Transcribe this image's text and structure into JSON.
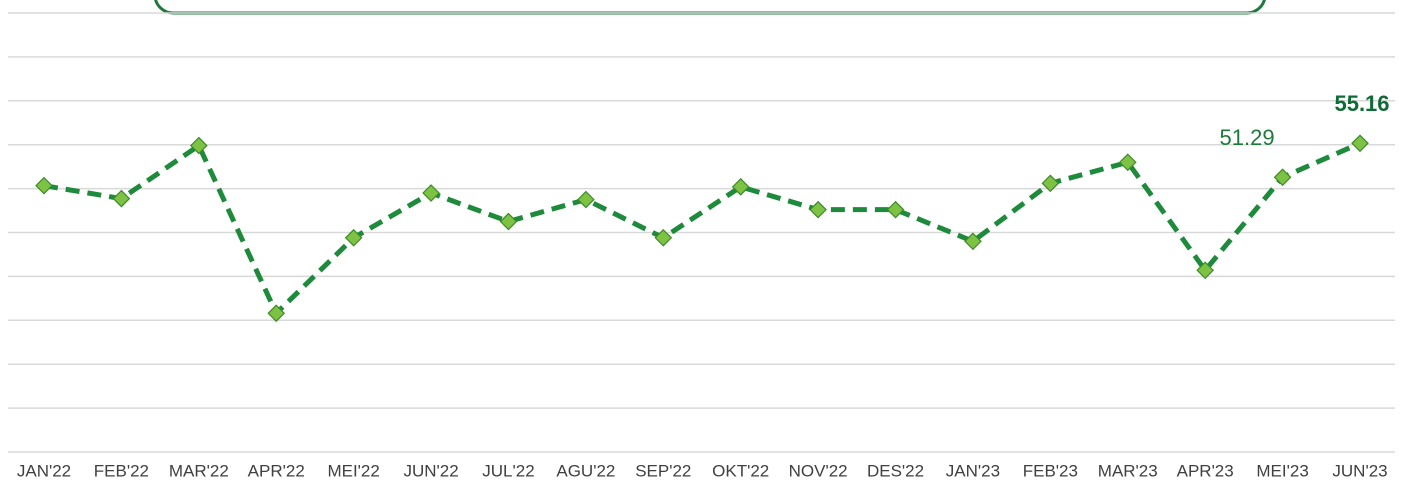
{
  "chart_data": {
    "type": "line",
    "categories": [
      "JAN'22",
      "FEB'22",
      "MAR'22",
      "APR'22",
      "MEI'22",
      "JUN'22",
      "JUL'22",
      "AGU'22",
      "SEP'22",
      "OKT'22",
      "NOV'22",
      "DES'22",
      "JAN'23",
      "FEB'23",
      "MAR'23",
      "APR'23",
      "MEI'23",
      "JUN'23"
    ],
    "series": [
      {
        "color": "#1e8a3c",
        "marker_color": "#7dc242",
        "values": [
          50.34,
          48.86,
          54.9,
          35.8,
          44.4,
          49.5,
          46.25,
          48.75,
          44.4,
          50.2,
          47.6,
          47.6,
          44.0,
          50.6,
          53.0,
          40.7,
          51.29,
          55.16
        ],
        "value_labels": [
          null,
          null,
          null,
          null,
          null,
          null,
          null,
          null,
          null,
          null,
          null,
          null,
          null,
          null,
          null,
          null,
          "51.29",
          "55.16"
        ]
      }
    ],
    "ylim": [
      20,
      70
    ],
    "yticks": [
      20,
      25,
      30,
      35,
      40,
      45,
      50,
      55,
      60,
      65,
      70
    ],
    "grid": true
  }
}
